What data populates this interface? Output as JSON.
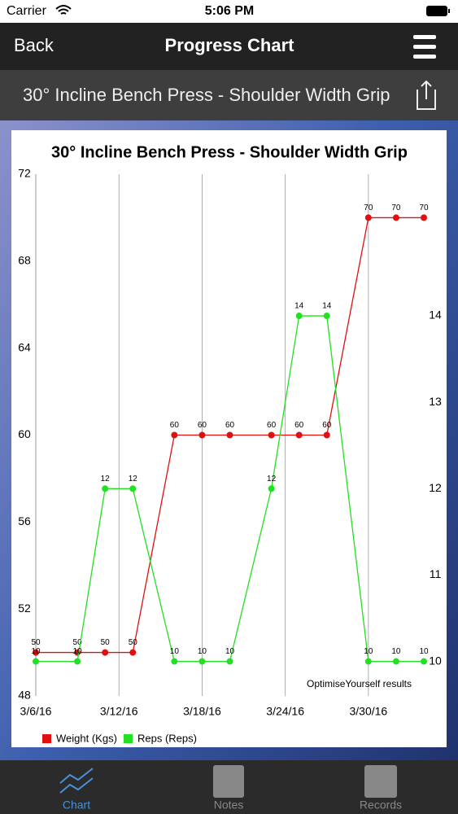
{
  "status_bar": {
    "carrier": "Carrier",
    "time": "5:06 PM"
  },
  "nav": {
    "back": "Back",
    "title": "Progress Chart"
  },
  "subheader": {
    "title": "30° Incline Bench Press - Shoulder Width Grip"
  },
  "tabs": [
    "Chart",
    "Notes",
    "Records"
  ],
  "chart_data": {
    "type": "line",
    "title": "30° Incline Bench Press - Shoulder Width Grip",
    "annotation": "OptimiseYourself results",
    "x": [
      "3/6/16",
      "3/9/16",
      "3/11/16",
      "3/13/16",
      "3/16/16",
      "3/18/16",
      "3/20/16",
      "3/23/16",
      "3/25/16",
      "3/27/16",
      "3/30/16",
      "4/1/16",
      "4/3/16"
    ],
    "xlim": [
      "3/6/16",
      "4/3/16"
    ],
    "xticks": [
      "3/6/16",
      "3/12/16",
      "3/18/16",
      "3/24/16",
      "3/30/16"
    ],
    "ylim": [
      48,
      72
    ],
    "yticks": [
      48,
      52,
      56,
      60,
      64,
      68,
      72
    ],
    "y2lim": [
      9.6,
      15.64
    ],
    "y2ticks": [
      10,
      11,
      12,
      13,
      14
    ],
    "grid": true,
    "legend": "bottom-left",
    "series": [
      {
        "name": "Weight (Kgs)",
        "color": "#e01010",
        "values": [
          50,
          50,
          50,
          50,
          60,
          60,
          60,
          60,
          60,
          60,
          70,
          70,
          70
        ]
      },
      {
        "name": "Reps (Reps)",
        "color": "#22e022",
        "axis": "y2",
        "values": [
          10,
          10,
          12,
          12,
          10,
          10,
          10,
          12,
          14,
          14,
          10,
          10,
          10
        ]
      }
    ]
  }
}
